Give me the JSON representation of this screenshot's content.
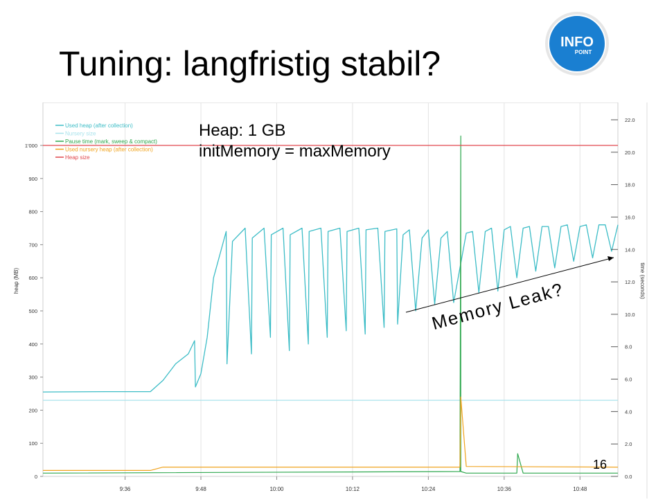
{
  "slide": {
    "title": "Tuning: langfristig stabil?",
    "logo_text_top": "INFO",
    "logo_text_bottom": "POINT",
    "annotation_heap": "Heap: 1 GB",
    "annotation_init": "initMemory = maxMemory",
    "annotation_leak": "Memory Leak?",
    "page_number": "16"
  },
  "colors": {
    "used_heap": "#3bbcc6",
    "nursery": "#a9e3ec",
    "pause": "#2fa84f",
    "used_nursery": "#f0a21c",
    "heap_size": "#e0454a",
    "logo_blue": "#1a7fd1"
  },
  "chart_data": {
    "type": "line",
    "ylabel": "heap (MB)",
    "y2label": "time (seconds)",
    "ylim": [
      0,
      1000
    ],
    "y2lim": [
      0,
      22
    ],
    "yticks": [
      "0",
      "100",
      "200",
      "300",
      "400",
      "500",
      "600",
      "700",
      "800",
      "900",
      "1'000"
    ],
    "y2ticks": [
      "0.0",
      "2.0",
      "4.0",
      "6.0",
      "8.0",
      "10.0",
      "12.0",
      "14.0",
      "16.0",
      "18.0",
      "20.0",
      "22.0"
    ],
    "xlim": [
      "9:23",
      "10:54"
    ],
    "xticks": [
      "9:36",
      "9:48",
      "10:00",
      "10:12",
      "10:24",
      "10:36",
      "10:48"
    ],
    "legend_position": "top-left",
    "series": [
      {
        "name": "Used heap (after collection)",
        "axis": "left",
        "x": [
          "9:23",
          "9:33",
          "9:40",
          "9:42",
          "9:44",
          "9:46",
          "9:47",
          "9:47",
          "9:48",
          "9:49",
          "9:50",
          "9:52",
          "9:52",
          "9:53",
          "9:55",
          "9:56",
          "9:56",
          "9:58",
          "9:59",
          "9:59",
          "10:01",
          "10:02",
          "10:02",
          "10:04",
          "10:05",
          "10:05",
          "10:07",
          "10:08",
          "10:08",
          "10:10",
          "10:11",
          "10:11",
          "10:13",
          "10:14",
          "10:14",
          "10:16",
          "10:17",
          "10:17",
          "10:19",
          "10:19",
          "10:20",
          "10:21",
          "10:22",
          "10:23",
          "10:24",
          "10:25",
          "10:26",
          "10:27",
          "10:28",
          "10:30",
          "10:31",
          "10:32",
          "10:33",
          "10:34",
          "10:35",
          "10:36",
          "10:37",
          "10:38",
          "10:39",
          "10:40",
          "10:41",
          "10:42",
          "10:43",
          "10:44",
          "10:45",
          "10:46",
          "10:47",
          "10:48",
          "10:49",
          "10:50",
          "10:51",
          "10:52",
          "10:53",
          "10:54"
        ],
        "y": [
          255,
          256,
          256,
          290,
          340,
          370,
          410,
          270,
          310,
          420,
          600,
          740,
          340,
          710,
          750,
          370,
          720,
          750,
          420,
          730,
          750,
          380,
          730,
          750,
          400,
          740,
          750,
          420,
          740,
          750,
          440,
          740,
          750,
          430,
          745,
          750,
          450,
          740,
          748,
          460,
          730,
          745,
          500,
          720,
          745,
          520,
          720,
          740,
          525,
          735,
          740,
          555,
          740,
          750,
          560,
          745,
          755,
          600,
          750,
          755,
          620,
          755,
          755,
          630,
          755,
          760,
          650,
          755,
          760,
          660,
          760,
          760,
          680,
          760
        ]
      },
      {
        "name": "Nursery size",
        "axis": "left",
        "x": [
          "9:23",
          "10:54"
        ],
        "y": [
          230,
          230
        ]
      },
      {
        "name": "Pause time (mark, sweep & compact)",
        "axis": "right",
        "x": [
          "9:23",
          "10:29",
          "10:29",
          "10:29",
          "10:30",
          "10:38",
          "10:38",
          "10:39",
          "10:54"
        ],
        "y": [
          0.2,
          0.3,
          21.0,
          0.3,
          0.2,
          0.2,
          1.4,
          0.2,
          0.2
        ]
      },
      {
        "name": "Used nursery heap (after collection)",
        "axis": "left",
        "x": [
          "9:23",
          "9:40",
          "9:42",
          "10:29",
          "10:29",
          "10:30",
          "10:54"
        ],
        "y": [
          18,
          18,
          28,
          28,
          240,
          30,
          28
        ]
      },
      {
        "name": "Heap size",
        "axis": "left",
        "x": [
          "9:23",
          "10:54"
        ],
        "y": [
          1000,
          1000
        ]
      }
    ]
  }
}
